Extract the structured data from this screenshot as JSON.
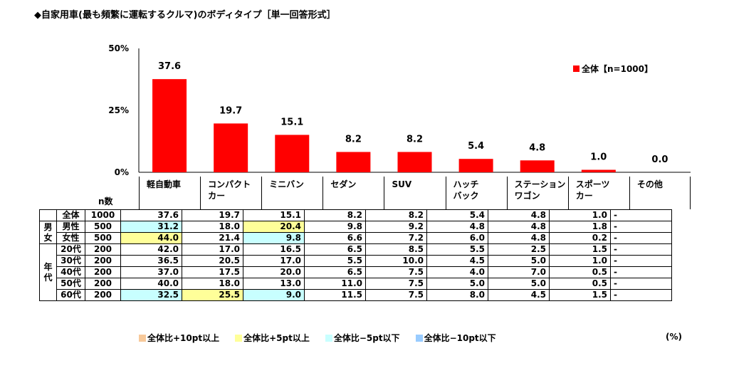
{
  "title": "◆自家用車(最も頻繁に運転するクルマ)のボディタイプ［単一回答形式］",
  "legend_label": "全体【n=1000】",
  "n_header": "n数",
  "unit": "(%)",
  "colors": {
    "bar": "#ff0000",
    "plus10": "#f7c99a",
    "plus5": "#ffff99",
    "minus5": "#c8ffff",
    "minus10": "#99ccff"
  },
  "chart_data": {
    "type": "bar",
    "categories": [
      "軽自動車",
      "コンパクト\nカー",
      "ミニバン",
      "セダン",
      "SUV",
      "ハッチ\nバック",
      "ステーション\nワゴン",
      "スポーツ\nカー",
      "その他"
    ],
    "values": [
      37.6,
      19.7,
      15.1,
      8.2,
      8.2,
      5.4,
      4.8,
      1.0,
      0.0
    ],
    "value_labels": [
      "37.6",
      "19.7",
      "15.1",
      "8.2",
      "8.2",
      "5.4",
      "4.8",
      "1.0",
      "0.0"
    ],
    "yticks": [
      "50%",
      "25%",
      "0%"
    ],
    "ylim": [
      0,
      50
    ],
    "legend": "top-right"
  },
  "table": {
    "rows": [
      {
        "group": "",
        "label": "全体",
        "n": "1000",
        "values": [
          "37.6",
          "19.7",
          "15.1",
          "8.2",
          "8.2",
          "5.4",
          "4.8",
          "1.0",
          "-"
        ],
        "highlights": [
          "",
          "",
          "",
          "",
          "",
          "",
          "",
          "",
          ""
        ]
      },
      {
        "group": "男女",
        "label": "男性",
        "n": "500",
        "values": [
          "31.2",
          "18.0",
          "20.4",
          "9.8",
          "9.2",
          "4.8",
          "4.8",
          "1.8",
          "-"
        ],
        "highlights": [
          "c-cyan",
          "",
          "c-yellow",
          "",
          "",
          "",
          "",
          "",
          ""
        ]
      },
      {
        "group": "",
        "label": "女性",
        "n": "500",
        "values": [
          "44.0",
          "21.4",
          "9.8",
          "6.6",
          "7.2",
          "6.0",
          "4.8",
          "0.2",
          "-"
        ],
        "highlights": [
          "c-yellow",
          "",
          "c-cyan",
          "",
          "",
          "",
          "",
          "",
          ""
        ]
      },
      {
        "group": "年代",
        "label": "20代",
        "n": "200",
        "values": [
          "42.0",
          "17.0",
          "16.5",
          "6.5",
          "8.5",
          "5.5",
          "2.5",
          "1.5",
          "-"
        ],
        "highlights": [
          "",
          "",
          "",
          "",
          "",
          "",
          "",
          "",
          ""
        ]
      },
      {
        "group": "",
        "label": "30代",
        "n": "200",
        "values": [
          "36.5",
          "20.5",
          "17.0",
          "5.5",
          "10.0",
          "4.5",
          "5.0",
          "1.0",
          "-"
        ],
        "highlights": [
          "",
          "",
          "",
          "",
          "",
          "",
          "",
          "",
          ""
        ]
      },
      {
        "group": "",
        "label": "40代",
        "n": "200",
        "values": [
          "37.0",
          "17.5",
          "20.0",
          "6.5",
          "7.5",
          "4.0",
          "7.0",
          "0.5",
          "-"
        ],
        "highlights": [
          "",
          "",
          "",
          "",
          "",
          "",
          "",
          "",
          ""
        ]
      },
      {
        "group": "",
        "label": "50代",
        "n": "200",
        "values": [
          "40.0",
          "18.0",
          "13.0",
          "11.0",
          "7.5",
          "5.0",
          "5.0",
          "0.5",
          "-"
        ],
        "highlights": [
          "",
          "",
          "",
          "",
          "",
          "",
          "",
          "",
          ""
        ]
      },
      {
        "group": "",
        "label": "60代",
        "n": "200",
        "values": [
          "32.5",
          "25.5",
          "9.0",
          "11.5",
          "7.5",
          "8.0",
          "4.5",
          "1.5",
          "-"
        ],
        "highlights": [
          "c-cyan",
          "c-yellow",
          "c-cyan",
          "",
          "",
          "",
          "",
          "",
          ""
        ]
      }
    ]
  },
  "bottom_legend": [
    {
      "label": "全体比+10pt以上",
      "color": "#f7c99a"
    },
    {
      "label": "全体比+5pt以上",
      "color": "#ffff99"
    },
    {
      "label": "全体比−5pt以下",
      "color": "#c8ffff"
    },
    {
      "label": "全体比−10pt以下",
      "color": "#99ccff"
    }
  ]
}
